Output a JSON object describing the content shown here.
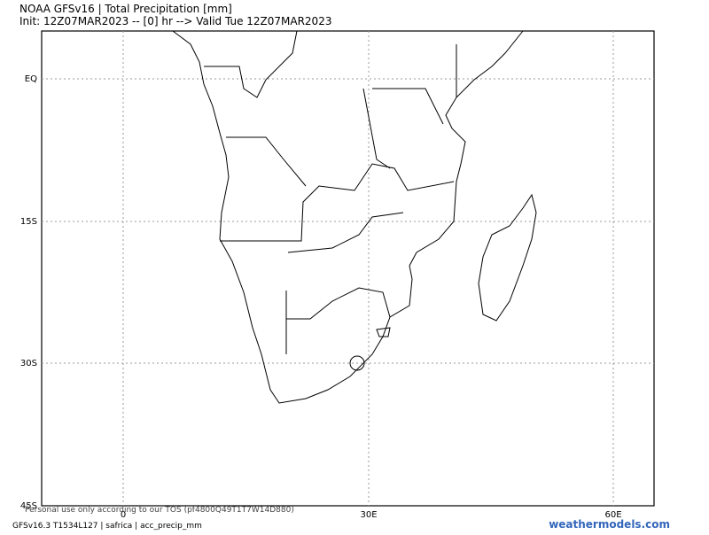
{
  "header": {
    "title": "NOAA GFSv16 | Total Precipitation [mm]",
    "subtitle": "Init: 12Z07MAR2023 -- [0] hr --> Valid Tue 12Z07MAR2023"
  },
  "map": {
    "lat_labels": [
      "EQ",
      "15S",
      "30S",
      "45S"
    ],
    "lon_labels": [
      "0",
      "30E",
      "60E"
    ]
  },
  "footer": {
    "tos": "Personal use only according to our TOS (pf4800Q49T1T7W14D880)",
    "model_info": "GFSv16.3 T1534L127 | safrica | acc_precip_mm",
    "brand": "weathermodels.com"
  }
}
